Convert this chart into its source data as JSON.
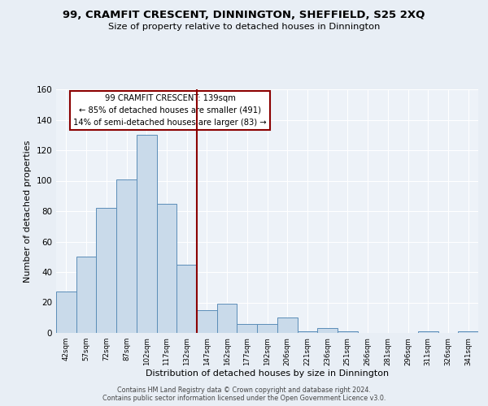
{
  "title": "99, CRAMFIT CRESCENT, DINNINGTON, SHEFFIELD, S25 2XQ",
  "subtitle": "Size of property relative to detached houses in Dinnington",
  "xlabel": "Distribution of detached houses by size in Dinnington",
  "ylabel": "Number of detached properties",
  "bar_labels": [
    "42sqm",
    "57sqm",
    "72sqm",
    "87sqm",
    "102sqm",
    "117sqm",
    "132sqm",
    "147sqm",
    "162sqm",
    "177sqm",
    "192sqm",
    "206sqm",
    "221sqm",
    "236sqm",
    "251sqm",
    "266sqm",
    "281sqm",
    "296sqm",
    "311sqm",
    "326sqm",
    "341sqm"
  ],
  "bar_heights": [
    27,
    50,
    82,
    101,
    130,
    85,
    45,
    15,
    19,
    6,
    6,
    10,
    1,
    3,
    1,
    0,
    0,
    0,
    1,
    0,
    1
  ],
  "bar_color": "#c9daea",
  "bar_edgecolor": "#5b8db8",
  "vline_color": "#8b0000",
  "annotation_title": "99 CRAMFIT CRESCENT: 139sqm",
  "annotation_line1": "← 85% of detached houses are smaller (491)",
  "annotation_line2": "14% of semi-detached houses are larger (83) →",
  "annotation_box_edgecolor": "#8b0000",
  "ylim": [
    0,
    160
  ],
  "yticks": [
    0,
    20,
    40,
    60,
    80,
    100,
    120,
    140,
    160
  ],
  "footer1": "Contains HM Land Registry data © Crown copyright and database right 2024.",
  "footer2": "Contains public sector information licensed under the Open Government Licence v3.0.",
  "bg_color": "#e8eef5",
  "plot_bg_color": "#edf2f8"
}
